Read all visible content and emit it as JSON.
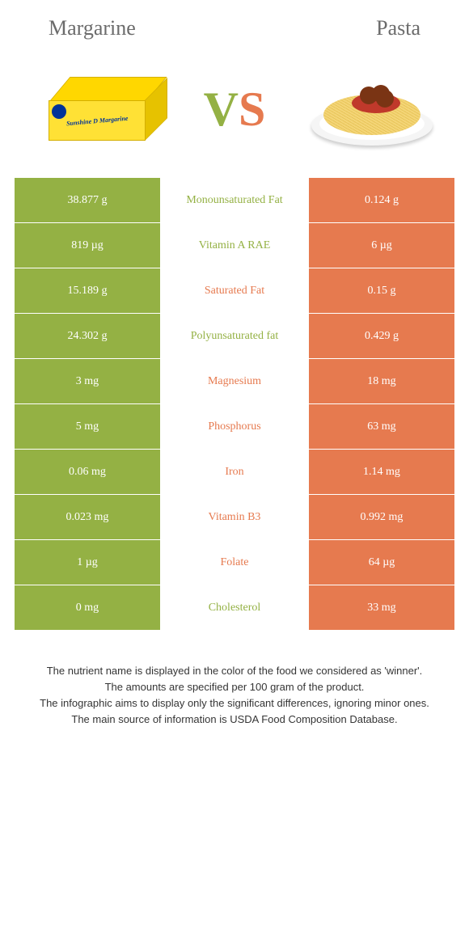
{
  "header": {
    "left_title": "Margarine",
    "right_title": "Pasta",
    "vs_v": "V",
    "vs_s": "S"
  },
  "colors": {
    "green": "#94b144",
    "orange": "#e67a4f",
    "text_grey": "#6b6b6b"
  },
  "rows": [
    {
      "left": "38.877 g",
      "mid": "Monounsaturated Fat",
      "right": "0.124 g",
      "winner": "left"
    },
    {
      "left": "819 µg",
      "mid": "Vitamin A RAE",
      "right": "6 µg",
      "winner": "left"
    },
    {
      "left": "15.189 g",
      "mid": "Saturated Fat",
      "right": "0.15 g",
      "winner": "right"
    },
    {
      "left": "24.302 g",
      "mid": "Polyunsaturated fat",
      "right": "0.429 g",
      "winner": "left"
    },
    {
      "left": "3 mg",
      "mid": "Magnesium",
      "right": "18 mg",
      "winner": "right"
    },
    {
      "left": "5 mg",
      "mid": "Phosphorus",
      "right": "63 mg",
      "winner": "right"
    },
    {
      "left": "0.06 mg",
      "mid": "Iron",
      "right": "1.14 mg",
      "winner": "right"
    },
    {
      "left": "0.023 mg",
      "mid": "Vitamin B3",
      "right": "0.992 mg",
      "winner": "right"
    },
    {
      "left": "1 µg",
      "mid": "Folate",
      "right": "64 µg",
      "winner": "right"
    },
    {
      "left": "0 mg",
      "mid": "Cholesterol",
      "right": "33 mg",
      "winner": "left"
    }
  ],
  "footer": {
    "line1": "The nutrient name is displayed in the color of the food we considered as 'winner'.",
    "line2": "The amounts are specified per 100 gram of the product.",
    "line3": "The infographic aims to display only the significant differences, ignoring minor ones.",
    "line4": "The main source of information is USDA Food Composition Database."
  }
}
